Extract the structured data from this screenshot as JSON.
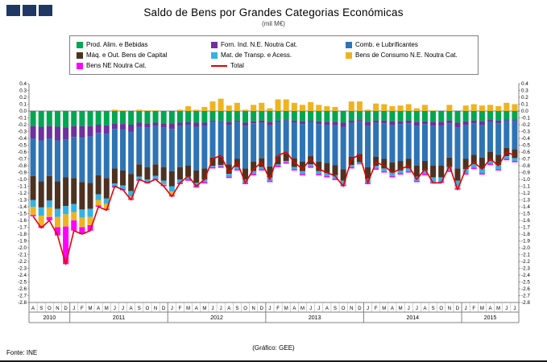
{
  "footer": {
    "source": "Fonte: INE",
    "credit": "(Gráfico: GEE)"
  },
  "logo": {
    "squares": 3,
    "color": "#1F3864"
  },
  "chart_data": {
    "type": "bar",
    "stacked": true,
    "overlay_line": "Total",
    "title": "Saldo de Bens por Grandes Categorias Económicas",
    "subtitle": "(mil M€)",
    "xlabel": "",
    "ylabel": "",
    "ylim": [
      -2.8,
      0.4
    ],
    "ytick": 0.1,
    "grid": false,
    "legend_position": "top-center",
    "axis_color": "#808080",
    "month_labels": [
      "A",
      "S",
      "O",
      "N",
      "D",
      "J",
      "F",
      "M",
      "A",
      "M",
      "J",
      "J",
      "A",
      "S",
      "O",
      "N",
      "D",
      "J",
      "F",
      "M",
      "A",
      "M",
      "J",
      "J",
      "A",
      "S",
      "O",
      "N",
      "D",
      "J",
      "F",
      "M",
      "A",
      "M",
      "J",
      "J",
      "A",
      "S",
      "O",
      "N",
      "D",
      "J",
      "F",
      "M",
      "A",
      "M",
      "J",
      "J",
      "A",
      "S",
      "O",
      "N",
      "D",
      "J",
      "F",
      "M",
      "A",
      "M",
      "J",
      "J"
    ],
    "year_groups": [
      {
        "label": "2010",
        "months": 5
      },
      {
        "label": "2011",
        "months": 12
      },
      {
        "label": "2012",
        "months": 12
      },
      {
        "label": "2013",
        "months": 12
      },
      {
        "label": "2014",
        "months": 12
      },
      {
        "label": "2015",
        "months": 7
      }
    ],
    "series": [
      {
        "name": "Prod. Alim. e Bebidas",
        "color": "#00A651",
        "values": [
          -0.22,
          -0.23,
          -0.22,
          -0.23,
          -0.24,
          -0.22,
          -0.22,
          -0.22,
          -0.2,
          -0.21,
          -0.18,
          -0.19,
          -0.2,
          -0.17,
          -0.18,
          -0.17,
          -0.18,
          -0.18,
          -0.17,
          -0.16,
          -0.17,
          -0.17,
          -0.14,
          -0.14,
          -0.16,
          -0.14,
          -0.17,
          -0.15,
          -0.14,
          -0.16,
          -0.14,
          -0.13,
          -0.14,
          -0.15,
          -0.14,
          -0.15,
          -0.16,
          -0.16,
          -0.17,
          -0.14,
          -0.13,
          -0.16,
          -0.14,
          -0.14,
          -0.15,
          -0.15,
          -0.14,
          -0.16,
          -0.15,
          -0.16,
          -0.16,
          -0.14,
          -0.17,
          -0.15,
          -0.14,
          -0.15,
          -0.13,
          -0.14,
          -0.12,
          -0.12
        ]
      },
      {
        "name": "Forn. Ind. N.E. Noutra Cat.",
        "color": "#7030A0",
        "values": [
          -0.18,
          -0.2,
          -0.18,
          -0.2,
          -0.18,
          -0.16,
          -0.17,
          -0.15,
          -0.12,
          -0.12,
          -0.08,
          -0.08,
          -0.1,
          -0.06,
          -0.06,
          -0.05,
          -0.06,
          -0.08,
          -0.05,
          -0.04,
          -0.06,
          -0.05,
          -0.02,
          -0.01,
          -0.04,
          -0.02,
          -0.05,
          -0.03,
          -0.03,
          -0.05,
          -0.02,
          -0.01,
          -0.03,
          -0.04,
          -0.02,
          -0.04,
          -0.04,
          -0.05,
          -0.06,
          -0.03,
          -0.02,
          -0.06,
          -0.03,
          -0.04,
          -0.05,
          -0.04,
          -0.04,
          -0.06,
          -0.04,
          -0.06,
          -0.06,
          -0.04,
          -0.07,
          -0.05,
          -0.04,
          -0.05,
          -0.03,
          -0.04,
          -0.02,
          -0.02
        ]
      },
      {
        "name": "Comb. e Lubrificantes",
        "color": "#2E74B5",
        "values": [
          -0.55,
          -0.6,
          -0.55,
          -0.6,
          -0.55,
          -0.6,
          -0.65,
          -0.68,
          -0.62,
          -0.65,
          -0.58,
          -0.6,
          -0.62,
          -0.55,
          -0.58,
          -0.56,
          -0.58,
          -0.62,
          -0.6,
          -0.6,
          -0.64,
          -0.62,
          -0.52,
          -0.52,
          -0.58,
          -0.54,
          -0.62,
          -0.56,
          -0.52,
          -0.6,
          -0.5,
          -0.48,
          -0.52,
          -0.55,
          -0.5,
          -0.55,
          -0.56,
          -0.58,
          -0.62,
          -0.5,
          -0.48,
          -0.6,
          -0.5,
          -0.52,
          -0.55,
          -0.54,
          -0.52,
          -0.58,
          -0.54,
          -0.58,
          -0.58,
          -0.5,
          -0.6,
          -0.5,
          -0.46,
          -0.48,
          -0.44,
          -0.46,
          -0.4,
          -0.42
        ]
      },
      {
        "name": "Máq. e Out. Bens de Capital",
        "color": "#4E3221",
        "values": [
          -0.35,
          -0.38,
          -0.36,
          -0.4,
          -0.42,
          -0.38,
          -0.4,
          -0.38,
          -0.28,
          -0.3,
          -0.22,
          -0.22,
          -0.25,
          -0.18,
          -0.18,
          -0.17,
          -0.2,
          -0.22,
          -0.18,
          -0.16,
          -0.18,
          -0.16,
          -0.12,
          -0.12,
          -0.14,
          -0.12,
          -0.16,
          -0.14,
          -0.13,
          -0.16,
          -0.12,
          -0.11,
          -0.13,
          -0.14,
          -0.12,
          -0.14,
          -0.15,
          -0.15,
          -0.17,
          -0.12,
          -0.12,
          -0.17,
          -0.13,
          -0.14,
          -0.15,
          -0.14,
          -0.14,
          -0.16,
          -0.14,
          -0.17,
          -0.17,
          -0.14,
          -0.18,
          -0.15,
          -0.14,
          -0.16,
          -0.13,
          -0.15,
          -0.12,
          -0.13
        ]
      },
      {
        "name": "Mat. de Transp. e Acess.",
        "color": "#33B3E5",
        "values": [
          -0.1,
          -0.12,
          -0.1,
          -0.12,
          -0.12,
          -0.12,
          -0.12,
          -0.12,
          -0.08,
          -0.08,
          -0.04,
          -0.05,
          -0.08,
          -0.04,
          -0.04,
          -0.04,
          -0.05,
          -0.08,
          -0.05,
          -0.04,
          -0.05,
          -0.04,
          -0.02,
          -0.02,
          -0.04,
          -0.03,
          -0.05,
          -0.04,
          -0.03,
          -0.05,
          -0.02,
          -0.02,
          -0.03,
          -0.04,
          -0.03,
          -0.04,
          -0.04,
          -0.05,
          -0.06,
          -0.03,
          -0.02,
          -0.06,
          -0.04,
          -0.04,
          -0.05,
          -0.04,
          -0.04,
          -0.06,
          -0.05,
          -0.07,
          -0.06,
          -0.05,
          -0.08,
          -0.06,
          -0.05,
          -0.07,
          -0.04,
          -0.06,
          -0.04,
          -0.04
        ]
      },
      {
        "name": "Bens de Consumo N.E. Noutra Cat.",
        "color": "#EFB320",
        "values": [
          -0.12,
          -0.15,
          -0.14,
          -0.15,
          -0.18,
          -0.12,
          -0.14,
          -0.12,
          -0.08,
          -0.07,
          0.02,
          0.01,
          -0.03,
          0.02,
          0.01,
          0.01,
          -0.01,
          -0.05,
          0.02,
          0.07,
          0.02,
          0.06,
          0.14,
          0.18,
          0.08,
          0.12,
          0.02,
          0.09,
          0.12,
          0.04,
          0.17,
          0.17,
          0.12,
          0.09,
          0.13,
          0.09,
          0.07,
          0.06,
          0,
          0.14,
          0.14,
          0.02,
          0.11,
          0.1,
          0.07,
          0.08,
          0.1,
          0.04,
          0.09,
          0.01,
          0,
          0.09,
          -0.03,
          0.08,
          0.1,
          0.08,
          0.09,
          0.07,
          0.12,
          0.1
        ]
      },
      {
        "name": "Bens NE Noutra Cat.",
        "color": "#FF00FF",
        "values": [
          -0.02,
          -0.03,
          -0.05,
          -0.12,
          -0.55,
          -0.15,
          -0.1,
          -0.08,
          -0.02,
          -0.02,
          -0.02,
          -0.02,
          -0.02,
          -0.02,
          -0.02,
          -0.02,
          -0.02,
          -0.02,
          -0.02,
          -0.02,
          -0.02,
          -0.02,
          -0.02,
          -0.02,
          -0.02,
          -0.02,
          -0.02,
          -0.02,
          -0.02,
          -0.02,
          -0.02,
          -0.02,
          -0.02,
          -0.02,
          -0.02,
          -0.02,
          -0.02,
          -0.02,
          -0.02,
          -0.02,
          -0.01,
          -0.02,
          -0.02,
          -0.02,
          -0.02,
          -0.02,
          -0.02,
          -0.02,
          -0.02,
          -0.02,
          -0.02,
          -0.02,
          -0.02,
          -0.02,
          -0.02,
          -0.02,
          -0.02,
          -0.02,
          -0.02,
          -0.02
        ]
      }
    ],
    "total": {
      "name": "Total",
      "color": "#E40000",
      "values": [
        -1.54,
        -1.71,
        -1.6,
        -1.82,
        -2.24,
        -1.75,
        -1.8,
        -1.75,
        -1.4,
        -1.45,
        -1.1,
        -1.15,
        -1.3,
        -1.0,
        -1.05,
        -1.0,
        -1.1,
        -1.25,
        -1.05,
        -0.95,
        -1.1,
        -1.0,
        -0.7,
        -0.65,
        -0.9,
        -0.75,
        -1.05,
        -0.85,
        -0.75,
        -1.0,
        -0.65,
        -0.6,
        -0.75,
        -0.85,
        -0.7,
        -0.85,
        -0.9,
        -0.95,
        -1.1,
        -0.7,
        -0.64,
        -1.05,
        -0.75,
        -0.8,
        -0.9,
        -0.85,
        -0.8,
        -1.0,
        -0.85,
        -1.05,
        -1.05,
        -0.8,
        -1.15,
        -0.85,
        -0.75,
        -0.85,
        -0.7,
        -0.8,
        -0.6,
        -0.65
      ]
    }
  }
}
